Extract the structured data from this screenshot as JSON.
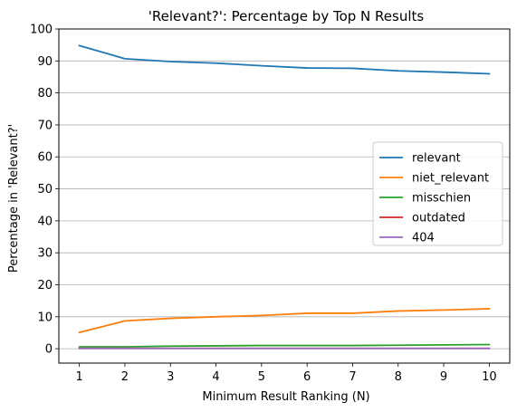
{
  "chart_data": {
    "type": "line",
    "title": "'Relevant?': Percentage by Top N Results",
    "xlabel": "Minimum Result Ranking (N)",
    "ylabel": "Percentage in 'Relevant?'",
    "x": [
      1,
      2,
      3,
      4,
      5,
      6,
      7,
      8,
      9,
      10
    ],
    "xlim": [
      0.55,
      10.45
    ],
    "ylim": [
      -4.5,
      100
    ],
    "xticks": [
      1,
      2,
      3,
      4,
      5,
      6,
      7,
      8,
      9,
      10
    ],
    "yticks": [
      0,
      10,
      20,
      30,
      40,
      50,
      60,
      70,
      80,
      90,
      100
    ],
    "grid": "horizontal",
    "legend_position": "center-right",
    "series": [
      {
        "name": "relevant",
        "color": "#1f77b4",
        "values": [
          94.8,
          90.7,
          89.8,
          89.3,
          88.5,
          87.8,
          87.7,
          86.9,
          86.5,
          86.0
        ]
      },
      {
        "name": "niet_relevant",
        "color": "#ff7f0e",
        "values": [
          5.1,
          8.7,
          9.5,
          10.0,
          10.4,
          11.1,
          11.1,
          11.8,
          12.1,
          12.5
        ]
      },
      {
        "name": "misschien",
        "color": "#2ca02c",
        "values": [
          0.6,
          0.6,
          0.8,
          0.9,
          1.0,
          1.0,
          1.0,
          1.1,
          1.2,
          1.3
        ]
      },
      {
        "name": "outdated",
        "color": "#d62728",
        "values": [
          0.1,
          0.1,
          0.1,
          0.1,
          0.1,
          0.1,
          0.1,
          0.1,
          0.1,
          0.1
        ]
      },
      {
        "name": "404",
        "color": "#9467bd",
        "values": [
          0.1,
          0.1,
          0.1,
          0.1,
          0.1,
          0.1,
          0.1,
          0.1,
          0.1,
          0.1
        ]
      }
    ]
  }
}
